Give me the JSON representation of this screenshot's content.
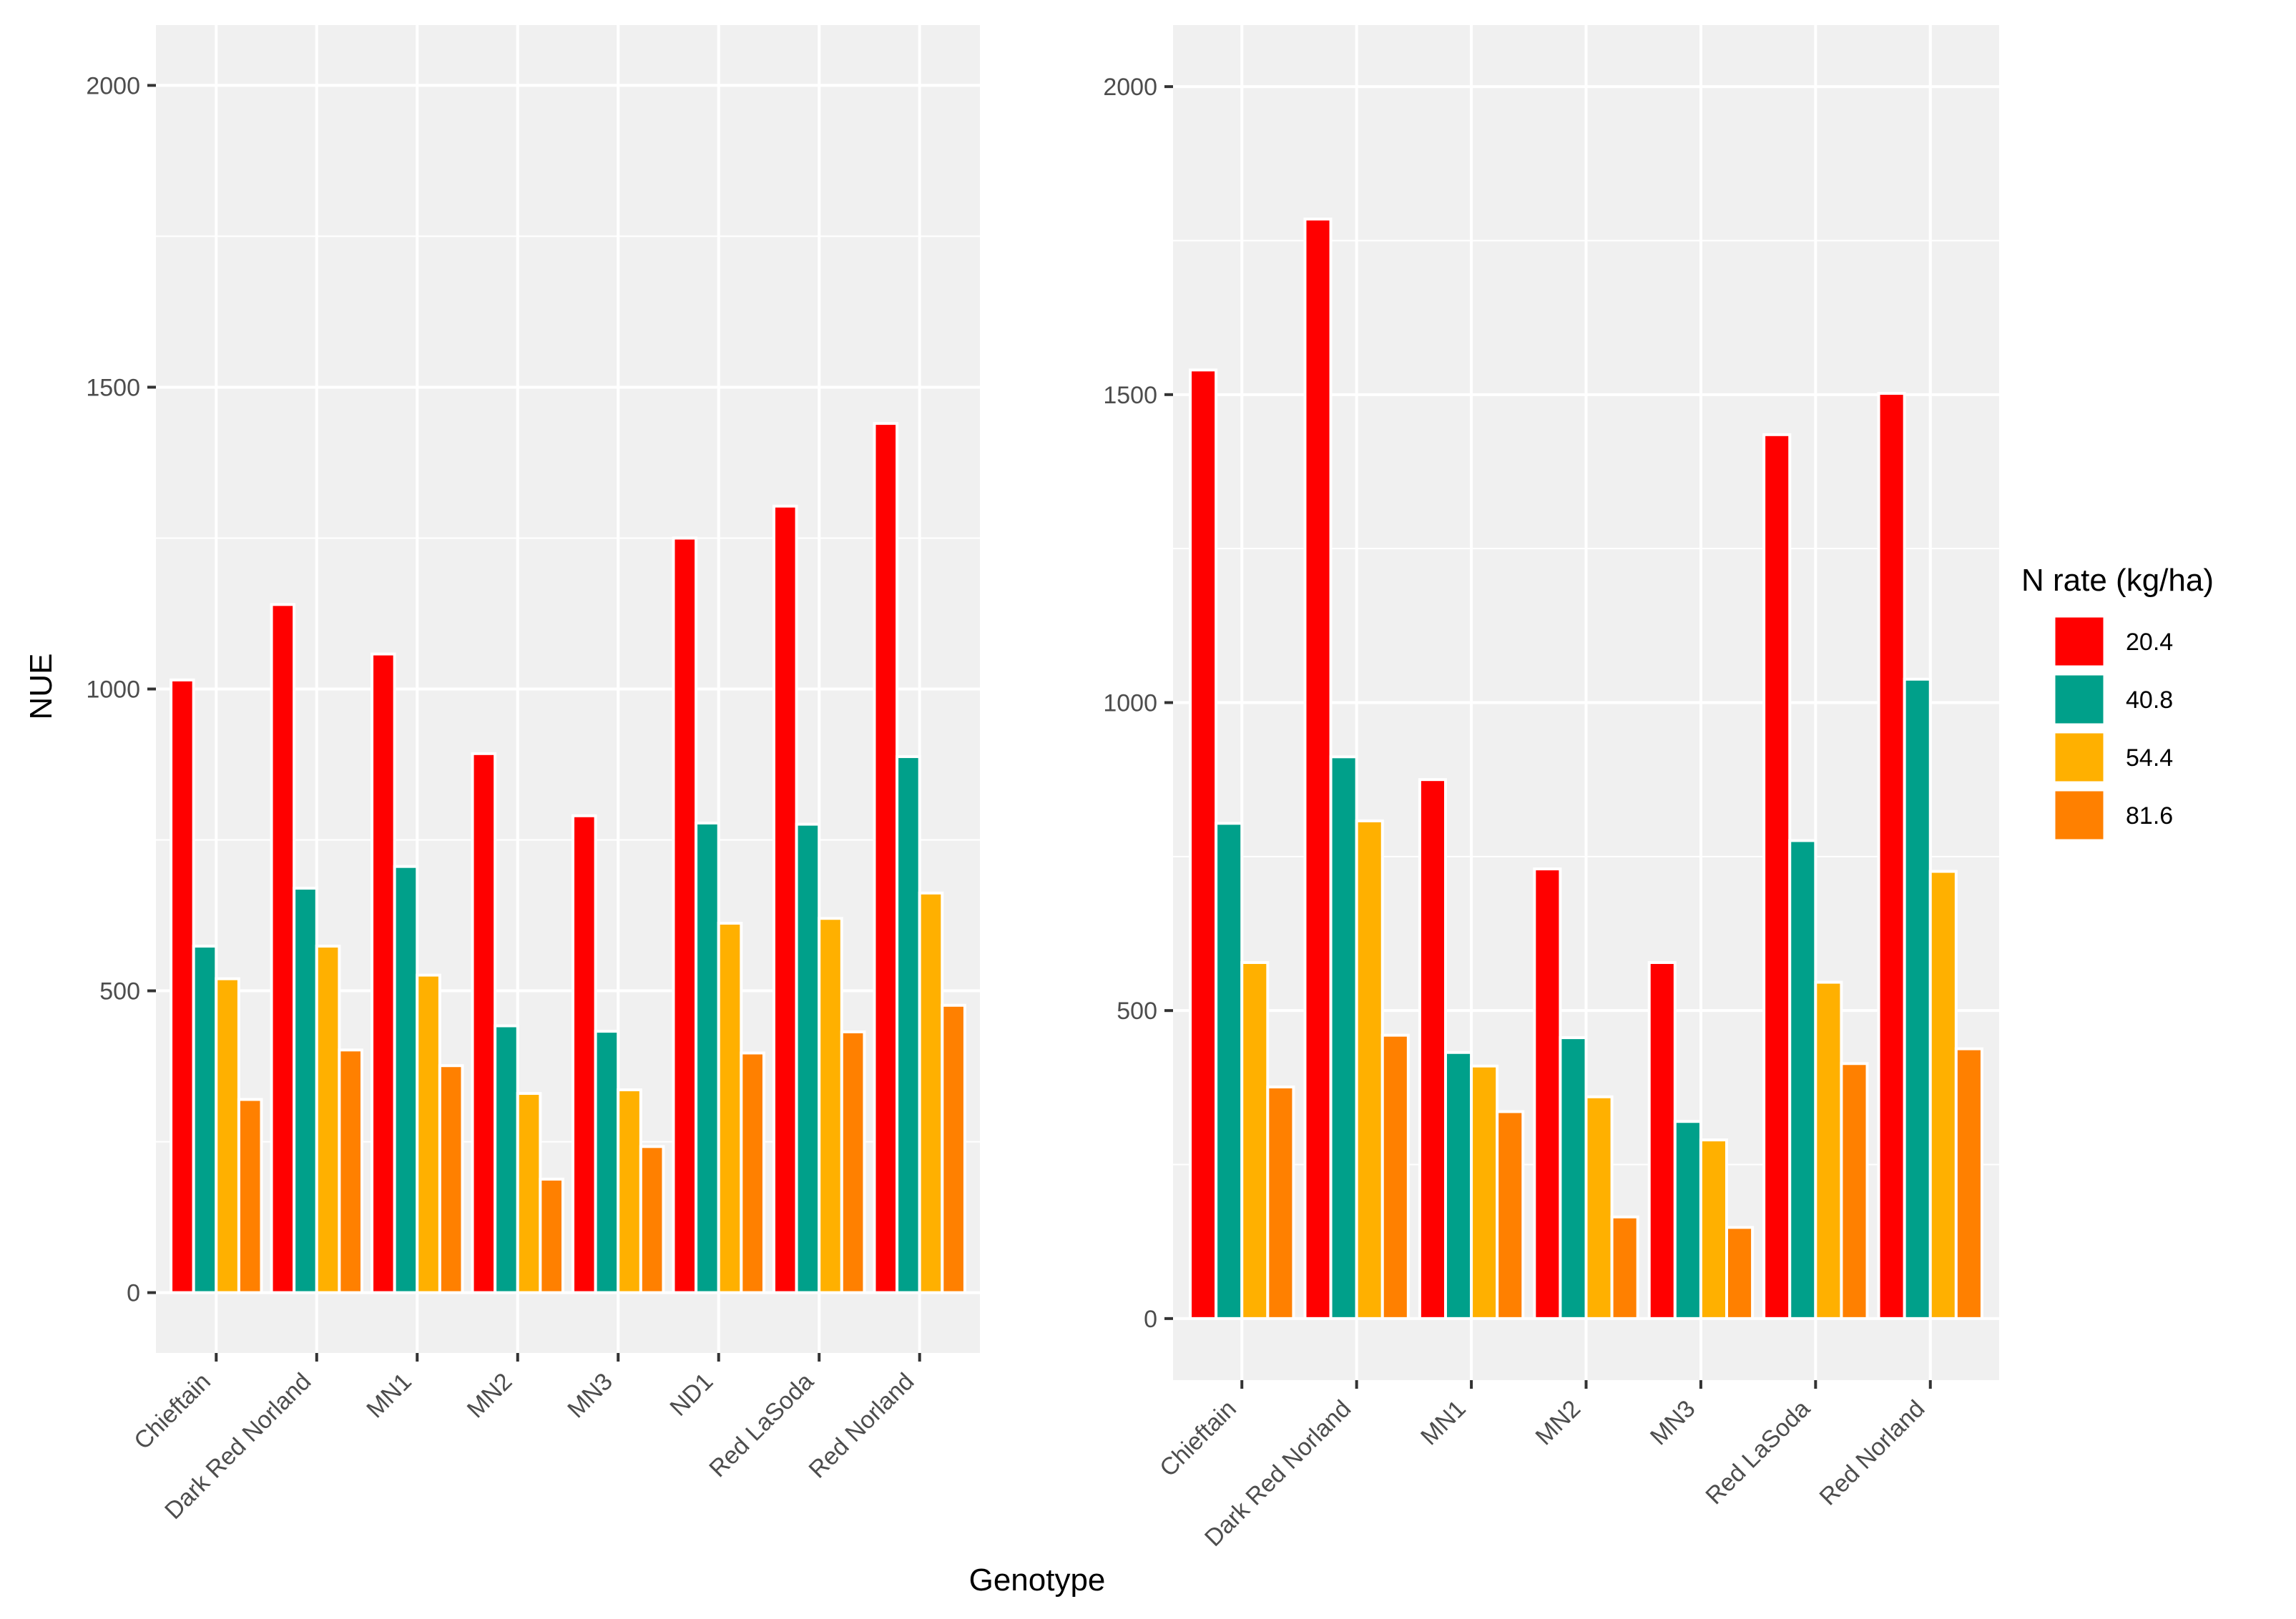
{
  "chart_data": [
    {
      "type": "bar",
      "title": "",
      "xlabel": "",
      "ylabel": "NUE",
      "ylim": [
        -100,
        2100
      ],
      "yticks": [
        0,
        500,
        1000,
        1500,
        2000
      ],
      "categories": [
        "Chieftain",
        "Dark Red Norland",
        "MN1",
        "MN2",
        "MN3",
        "ND1",
        "Red LaSoda",
        "Red Norland"
      ],
      "series": [
        {
          "name": "20.4",
          "values": [
            1015,
            1140,
            1058,
            893,
            790,
            1250,
            1303,
            1440
          ]
        },
        {
          "name": "40.8",
          "values": [
            574,
            670,
            706,
            442,
            433,
            778,
            776,
            888
          ]
        },
        {
          "name": "54.4",
          "values": [
            520,
            574,
            526,
            330,
            336,
            612,
            620,
            662
          ]
        },
        {
          "name": "81.6",
          "values": [
            320,
            402,
            376,
            188,
            242,
            397,
            432,
            476
          ]
        }
      ]
    },
    {
      "type": "bar",
      "title": "",
      "xlabel": "",
      "ylabel": "",
      "ylim": [
        -100,
        2100
      ],
      "yticks": [
        0,
        500,
        1000,
        1500,
        2000
      ],
      "categories": [
        "Chieftain",
        "Dark Red Norland",
        "MN1",
        "MN2",
        "MN3",
        "Red LaSoda",
        "Red Norland"
      ],
      "series": [
        {
          "name": "20.4",
          "values": [
            1540,
            1785,
            875,
            730,
            578,
            1435,
            1502
          ]
        },
        {
          "name": "40.8",
          "values": [
            804,
            912,
            432,
            456,
            320,
            776,
            1038
          ]
        },
        {
          "name": "54.4",
          "values": [
            578,
            808,
            410,
            360,
            290,
            546,
            726
          ]
        },
        {
          "name": "81.6",
          "values": [
            376,
            460,
            336,
            165,
            148,
            414,
            438
          ]
        }
      ]
    }
  ],
  "shared": {
    "xlabel": "Genotype",
    "legend_title": "N rate (kg/ha)",
    "legend_items": [
      "20.4",
      "40.8",
      "54.4",
      "81.6"
    ],
    "colors": [
      "#ff0000",
      "#00a08a",
      "#ffb000",
      "#ff8000"
    ],
    "panel_bg": "#f0f0f0",
    "grid_color": "#ffffff"
  }
}
